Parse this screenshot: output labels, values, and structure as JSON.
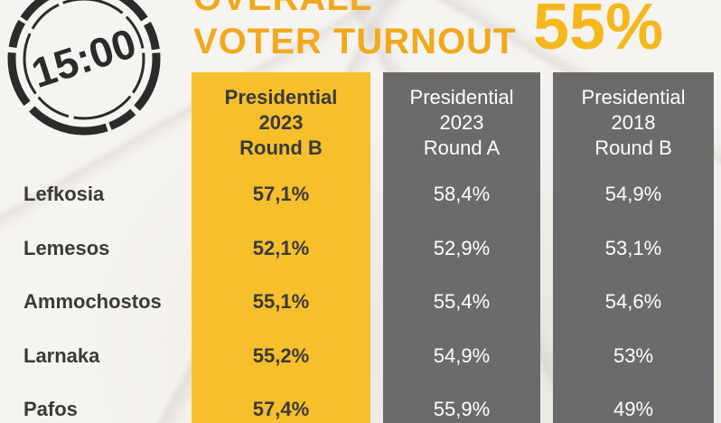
{
  "header": {
    "title_line1": "OVERALL",
    "title_line2": "VOTER TURNOUT",
    "overall_turnout": "55%",
    "time_stamp": "15:00"
  },
  "columns": [
    {
      "lines": [
        "Presidential",
        "2023",
        "Round B"
      ]
    },
    {
      "lines": [
        "Presidential",
        "2023",
        "Round A"
      ]
    },
    {
      "lines": [
        "Presidential",
        "2018",
        "Round B"
      ]
    }
  ],
  "rows": [
    {
      "district": "Lefkosia",
      "values": [
        "57,1%",
        "58,4%",
        "54,9%"
      ]
    },
    {
      "district": "Lemesos",
      "values": [
        "52,1%",
        "52,9%",
        "53,1%"
      ]
    },
    {
      "district": "Ammochostos",
      "values": [
        "55,1%",
        "55,4%",
        "54,6%"
      ]
    },
    {
      "district": "Larnaka",
      "values": [
        "55,2%",
        "54,9%",
        "53%"
      ]
    },
    {
      "district": "Pafos",
      "values": [
        "57,4%",
        "55,9%",
        "49%"
      ]
    }
  ],
  "colors": {
    "accent_yellow": "#f7bf2c",
    "title_orange": "#f2a81d",
    "column_gray": "#6b6b6b",
    "text_dark": "#3a3a3a"
  }
}
